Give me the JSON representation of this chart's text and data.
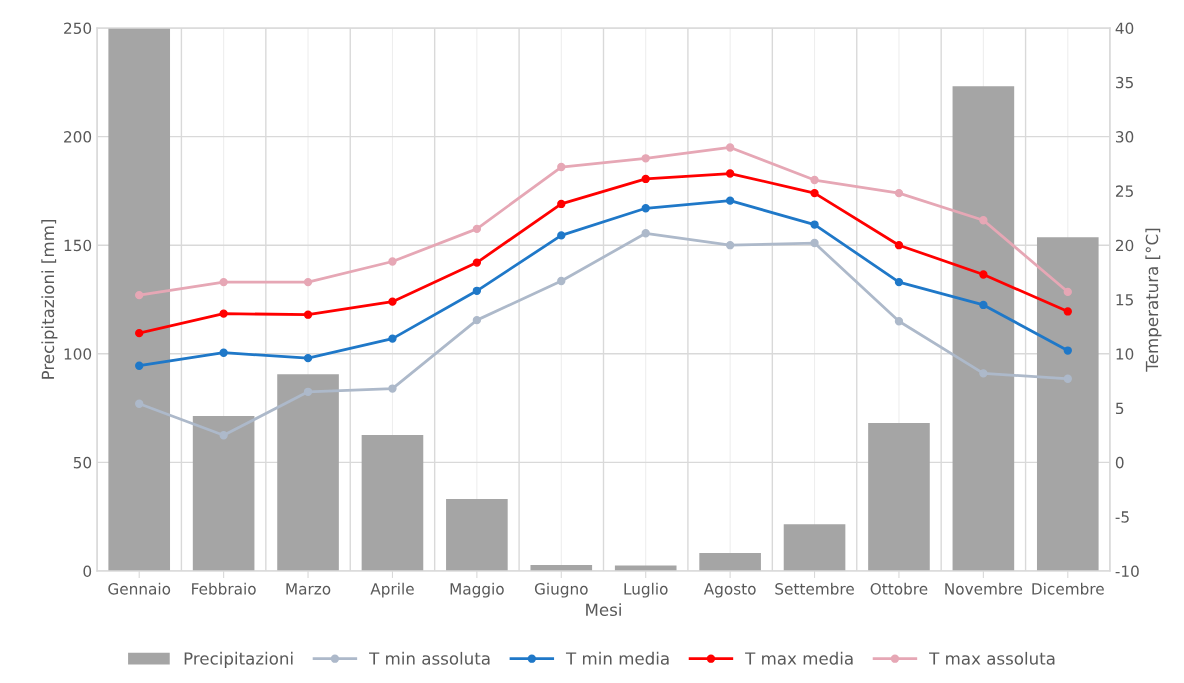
{
  "chart_data": {
    "type": "bar",
    "xlabel": "Mesi",
    "ylabel": "Precipitazioni [mm]",
    "y2label": "Temperatura [°C]",
    "categories": [
      "Gennaio",
      "Febbraio",
      "Marzo",
      "Aprile",
      "Maggio",
      "Giugno",
      "Luglio",
      "Agosto",
      "Settembre",
      "Ottobre",
      "Novembre",
      "Dicembre"
    ],
    "series": [
      {
        "name": "Precipitazioni",
        "color": "#a5a5a5",
        "values": [
          250,
          71.4,
          90.6,
          62.6,
          33.2,
          2.8,
          2.5,
          8.3,
          21.5,
          68.1,
          223.2,
          153.7
        ]
      },
      {
        "name": "T min assoluta",
        "type": "line",
        "axis": "y2",
        "color": "#adb9ca",
        "values": [
          5.4,
          2.5,
          6.5,
          6.8,
          13.1,
          16.7,
          21.1,
          20.0,
          20.2,
          13.0,
          8.2,
          7.7
        ]
      },
      {
        "name": "T min media",
        "type": "line",
        "axis": "y2",
        "color": "#1f78c8",
        "values": [
          8.9,
          10.1,
          9.6,
          11.4,
          15.8,
          20.9,
          23.4,
          24.1,
          21.9,
          16.6,
          14.5,
          10.3
        ]
      },
      {
        "name": "T max media",
        "type": "line",
        "axis": "y2",
        "color": "#ff0000",
        "values": [
          11.9,
          13.7,
          13.6,
          14.8,
          18.4,
          23.8,
          26.1,
          26.6,
          24.8,
          20.0,
          17.3,
          13.9
        ]
      },
      {
        "name": "T max assoluta",
        "type": "line",
        "axis": "y2",
        "color": "#e6a7b5",
        "values": [
          15.4,
          16.6,
          16.6,
          18.5,
          21.5,
          27.2,
          28.0,
          29.0,
          26.0,
          24.8,
          22.3,
          15.7
        ]
      }
    ],
    "ylim": [
      0,
      250
    ],
    "yticks": [
      0,
      50,
      100,
      150,
      200,
      250
    ],
    "y2lim": [
      -10,
      40
    ],
    "y2ticks": [
      -10,
      -5,
      0,
      5,
      10,
      15,
      20,
      25,
      30,
      35,
      40
    ],
    "grid": true,
    "legend": "bottom",
    "marker": "circle",
    "line_style": "solid"
  }
}
